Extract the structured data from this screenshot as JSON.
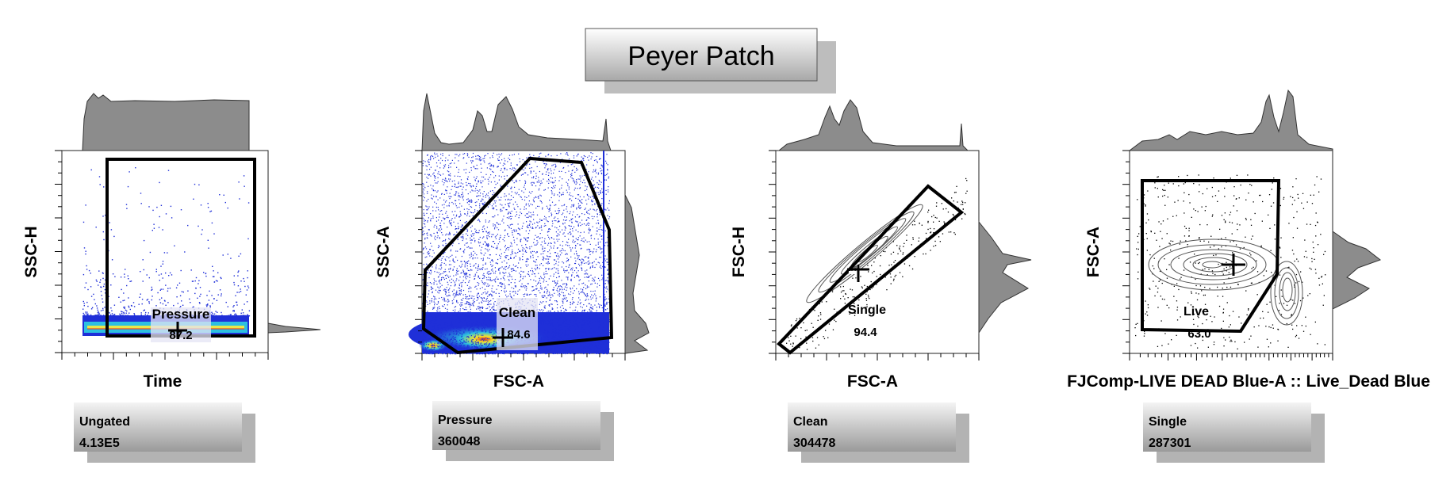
{
  "title": "Peyer Patch",
  "colors": {
    "histogram_fill": "#8c8c8c",
    "gate_stroke": "#000000",
    "density_low": "#1f2fd8",
    "density_mid": "#2cc0e0",
    "density_high": "#f5e32a",
    "density_peak": "#e8281e",
    "contour": "#555555",
    "label_box_bg": "#c9c9c9",
    "label_box_shadow": "#b3b3b3"
  },
  "chart_data": [
    {
      "type": "scatter",
      "style": "pseudocolor-dot-plot",
      "xlabel": "Time",
      "ylabel": "SSC-H",
      "gate": {
        "name": "Pressure",
        "percent": "87.2",
        "shape": "rectangle"
      },
      "population_box": {
        "name": "Ungated",
        "count": "4.13E5"
      }
    },
    {
      "type": "scatter",
      "style": "pseudocolor-dot-plot",
      "xlabel": "FSC-A",
      "ylabel": "SSC-A",
      "gate": {
        "name": "Clean",
        "percent": "84.6",
        "shape": "polygon"
      },
      "population_box": {
        "name": "Pressure",
        "count": "360048"
      }
    },
    {
      "type": "scatter",
      "style": "contour-plot",
      "xlabel": "FSC-A",
      "ylabel": "FSC-H",
      "gate": {
        "name": "Single",
        "percent": "94.4",
        "shape": "polygon"
      },
      "population_box": {
        "name": "Clean",
        "count": "304478"
      }
    },
    {
      "type": "scatter",
      "style": "contour-plot",
      "xlabel": "FJComp-LIVE DEAD Blue-A :: Live_Dead Blue",
      "ylabel": "FSC-A",
      "gate": {
        "name": "Live",
        "percent": "63.0",
        "shape": "polygon"
      },
      "population_box": {
        "name": "Single",
        "count": "287301"
      }
    }
  ]
}
